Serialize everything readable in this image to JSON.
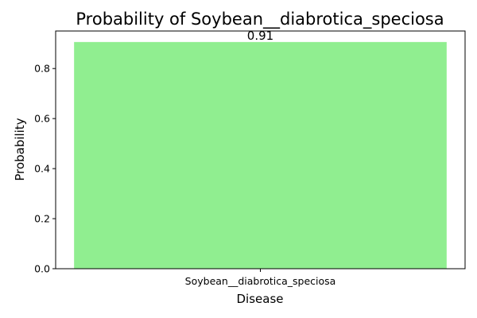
{
  "chart_data": {
    "type": "bar",
    "title": "Probability of Soybean__diabrotica_speciosa",
    "xlabel": "Disease",
    "ylabel": "Probability",
    "categories": [
      "Soybean__diabrotica_speciosa"
    ],
    "values": [
      0.906
    ],
    "data_labels": [
      "0.91"
    ],
    "ylim": [
      0,
      0.95
    ],
    "yticks": [
      0.0,
      0.2,
      0.4,
      0.6,
      0.8
    ],
    "ytick_labels": [
      "0.0",
      "0.2",
      "0.4",
      "0.6",
      "0.8"
    ],
    "bar_color": "#90ee90",
    "grid": false,
    "legend": "none"
  }
}
